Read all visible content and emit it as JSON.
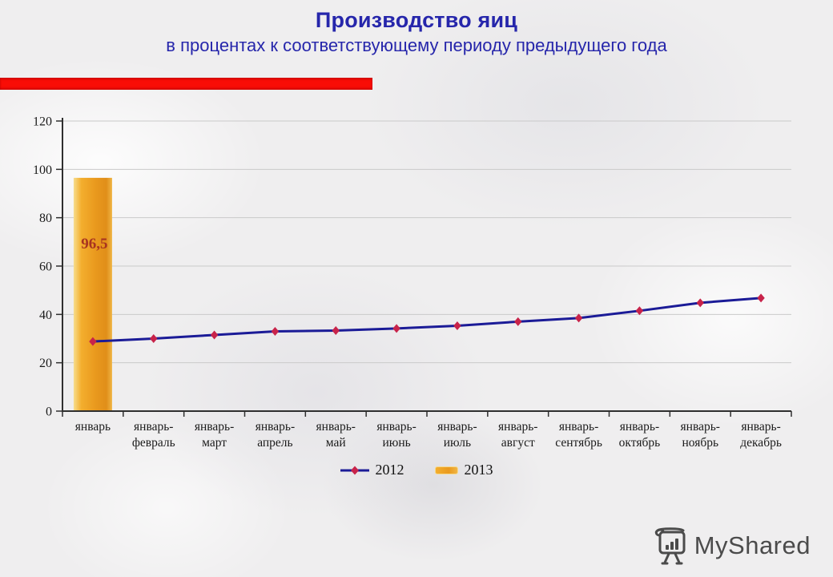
{
  "slide": {
    "title": "Производство яиц",
    "subtitle": "в процентах к соответствующему периоду предыдущего года",
    "title_color": "#2626ab",
    "accent_bar_color": "#f90d06",
    "background_color": "#efeeef"
  },
  "chart_data": {
    "type": "bar",
    "subtype": "combo bar + line",
    "title": "Производство яиц",
    "xlabel": "",
    "ylabel": "",
    "categories": [
      "январь",
      "январь-февраль",
      "январь-март",
      "январь-апрель",
      "январь-май",
      "январь-июнь",
      "январь-июль",
      "январь-август",
      "январь-сентябрь",
      "январь-октябрь",
      "январь-ноябрь",
      "январь-декабрь"
    ],
    "series": [
      {
        "name": "2012",
        "type": "line",
        "color": "#1b1b97",
        "marker": "diamond",
        "marker_color": "#c8234a",
        "values": [
          28.8,
          30,
          31.5,
          33,
          33.3,
          34.2,
          35.3,
          37,
          38.5,
          41.5,
          44.8,
          46.8
        ]
      },
      {
        "name": "2013",
        "type": "bar",
        "label_color": "#a83420",
        "data_labels": [
          "96,5"
        ],
        "values": [
          96.5,
          null,
          null,
          null,
          null,
          null,
          null,
          null,
          null,
          null,
          null,
          null
        ],
        "gradient": [
          {
            "offset": "0%",
            "color": "#f7dd8d"
          },
          {
            "offset": "20%",
            "color": "#f3ae2e"
          },
          {
            "offset": "55%",
            "color": "#ea9a1e"
          },
          {
            "offset": "85%",
            "color": "#e08e19"
          },
          {
            "offset": "100%",
            "color": "#f0b545"
          }
        ]
      }
    ],
    "ylim": [
      0,
      120
    ],
    "yticks": [
      0,
      20,
      40,
      60,
      80,
      100,
      120
    ],
    "grid": "horizontal",
    "grid_color": "#cacaca",
    "axis_color": "#2f2f2f",
    "legend_position": "bottom-center"
  },
  "logo": {
    "text": "MyShared",
    "color": "#4b4b4b"
  }
}
